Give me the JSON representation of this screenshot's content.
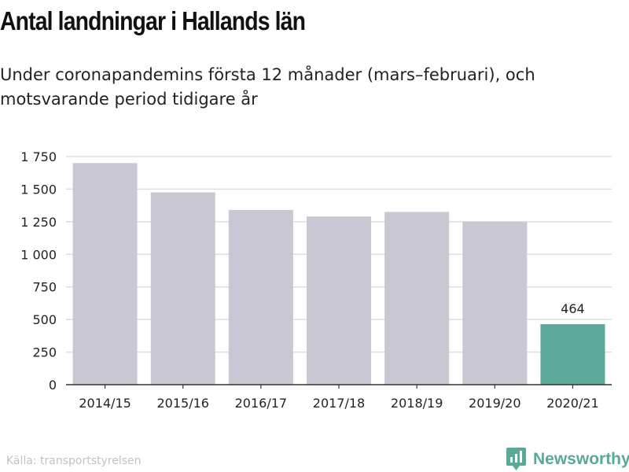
{
  "title": "Antal landningar i Hallands län",
  "subtitle": "Under coronapandemins första 12 månader (mars–februari), och motsvarande period tidigare år",
  "source": "Källa: transportstyrelsen",
  "brand": {
    "name": "Newsworthy",
    "icon": "newsworthy-logo-icon"
  },
  "colors": {
    "bar": "#c8c7d3",
    "highlight": "#5ba89b",
    "grid": "#dddddd",
    "axis": "#333333",
    "brand": "#5aa89a"
  },
  "chart_data": {
    "type": "bar",
    "categories": [
      "2014/15",
      "2015/16",
      "2016/17",
      "2017/18",
      "2018/19",
      "2019/20",
      "2020/21"
    ],
    "values": [
      1700,
      1475,
      1340,
      1290,
      1325,
      1250,
      464
    ],
    "highlight_index": 6,
    "data_labels": [
      {
        "index": 6,
        "text": "464"
      }
    ],
    "title": "",
    "xlabel": "",
    "ylabel": "",
    "ylim": [
      0,
      1750
    ],
    "yticks": [
      0,
      250,
      500,
      750,
      1000,
      1250,
      1500,
      1750
    ],
    "ytick_labels": [
      "0",
      "250",
      "500",
      "750",
      "1 000",
      "1 250",
      "1 500",
      "1 750"
    ],
    "grid": true,
    "legend": "none"
  }
}
